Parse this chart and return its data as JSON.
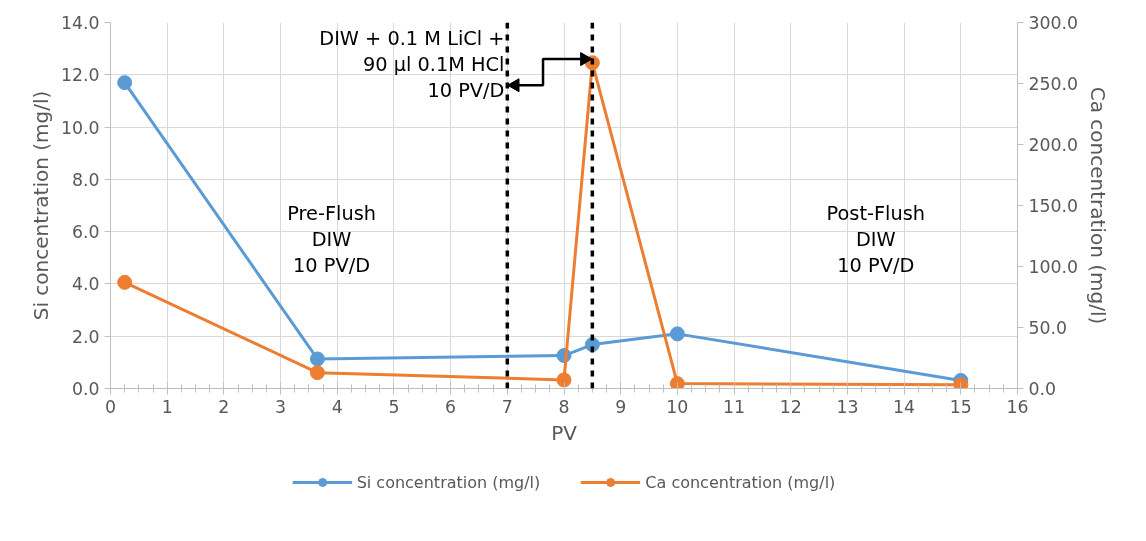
{
  "chart_data": {
    "type": "line",
    "xlabel": "PV",
    "ylabel": "Si concentration (mg/l)",
    "y2label": "Ca concentration (mg/l)",
    "x": [
      0.25,
      3.65,
      8,
      8.5,
      10,
      15
    ],
    "series": [
      {
        "name": "Si concentration (mg/l)",
        "color": "#5b9bd5",
        "values": [
          11.7,
          1.13,
          1.26,
          1.68,
          2.09,
          0.31
        ]
      },
      {
        "name": "Ca concentration (mg/l)",
        "color": "#ed7d31",
        "axis": "y2",
        "values": [
          87,
          13,
          7,
          267,
          4,
          3
        ]
      }
    ],
    "xlim": [
      0,
      16
    ],
    "xticks": [
      0,
      1,
      2,
      3,
      4,
      5,
      6,
      7,
      8,
      9,
      10,
      11,
      12,
      13,
      14,
      15,
      16
    ],
    "ylim": [
      0,
      14
    ],
    "yticks": [
      {
        "value": 0,
        "label": "0.0"
      },
      {
        "value": 2,
        "label": "2.0"
      },
      {
        "value": 4,
        "label": "4.0"
      },
      {
        "value": 6,
        "label": "6.0"
      },
      {
        "value": 8,
        "label": "8.0"
      },
      {
        "value": 10,
        "label": "10.0"
      },
      {
        "value": 12,
        "label": "12.0"
      },
      {
        "value": 14,
        "label": "14.0"
      }
    ],
    "y2lim": [
      0,
      300
    ],
    "y2ticks": [
      {
        "value": 0,
        "label": "0.0"
      },
      {
        "value": 50,
        "label": "50.0"
      },
      {
        "value": 100,
        "label": "100.0"
      },
      {
        "value": 150,
        "label": "150.0"
      },
      {
        "value": 200,
        "label": "200.0"
      },
      {
        "value": 250,
        "label": "250.0"
      },
      {
        "value": 300,
        "label": "300.0"
      }
    ],
    "ref_lines": [
      {
        "axis": "x",
        "value": 7,
        "color": "#000000",
        "line_style": "dashed"
      },
      {
        "axis": "x",
        "value": 8.5,
        "color": "#000000",
        "line_style": "dashed"
      }
    ],
    "annotations": [
      "DIW + 0.1 M LiCl +\n90 μl 0.1M HCl\n10 PV/D",
      "Pre-Flush\nDIW\n10 PV/D",
      "Post-Flush\nDIW\n10 PV/D"
    ],
    "grid": true,
    "legend": "bottom",
    "marker": "circle",
    "line_style": "solid"
  }
}
